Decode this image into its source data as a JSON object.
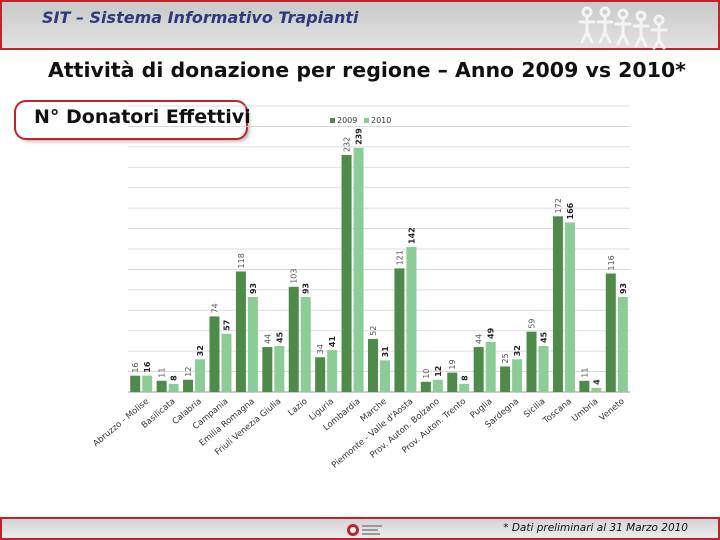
{
  "header": {
    "title": "SIT – Sistema Informativo Trapianti"
  },
  "page": {
    "title": "Attività di donazione per regione – Anno 2009 vs 2010*"
  },
  "subtitle": "N° Donatori Effettivi",
  "footer": {
    "note": "* Dati preliminari al 31 Marzo 2010"
  },
  "chart_data": {
    "type": "bar",
    "title": "",
    "xlabel": "",
    "ylabel": "",
    "ylim": [
      0,
      280
    ],
    "grid": true,
    "legend_position": "top",
    "categories": [
      "Abruzzo - Molise",
      "Basilicata",
      "Calabria",
      "Campania",
      "Emilia Romagna",
      "Friuli Venezia Giulia",
      "Lazio",
      "Liguria",
      "Lombardia",
      "Marche",
      "Piemonte - Valle d'Aosta",
      "Prov. Auton. Bolzano",
      "Prov. Auton. Trento",
      "Puglia",
      "Sardegna",
      "Sicilia",
      "Toscana",
      "Umbria",
      "Veneto"
    ],
    "series": [
      {
        "name": "2009",
        "color": "#4e8a4a",
        "values": [
          16,
          11,
          12,
          74,
          118,
          44,
          103,
          34,
          232,
          52,
          121,
          10,
          19,
          44,
          25,
          59,
          172,
          11,
          116
        ]
      },
      {
        "name": "2010",
        "color": "#8ccc96",
        "values": [
          16,
          8,
          32,
          57,
          93,
          45,
          93,
          41,
          239,
          31,
          142,
          12,
          8,
          49,
          32,
          45,
          166,
          4,
          93
        ]
      }
    ]
  }
}
